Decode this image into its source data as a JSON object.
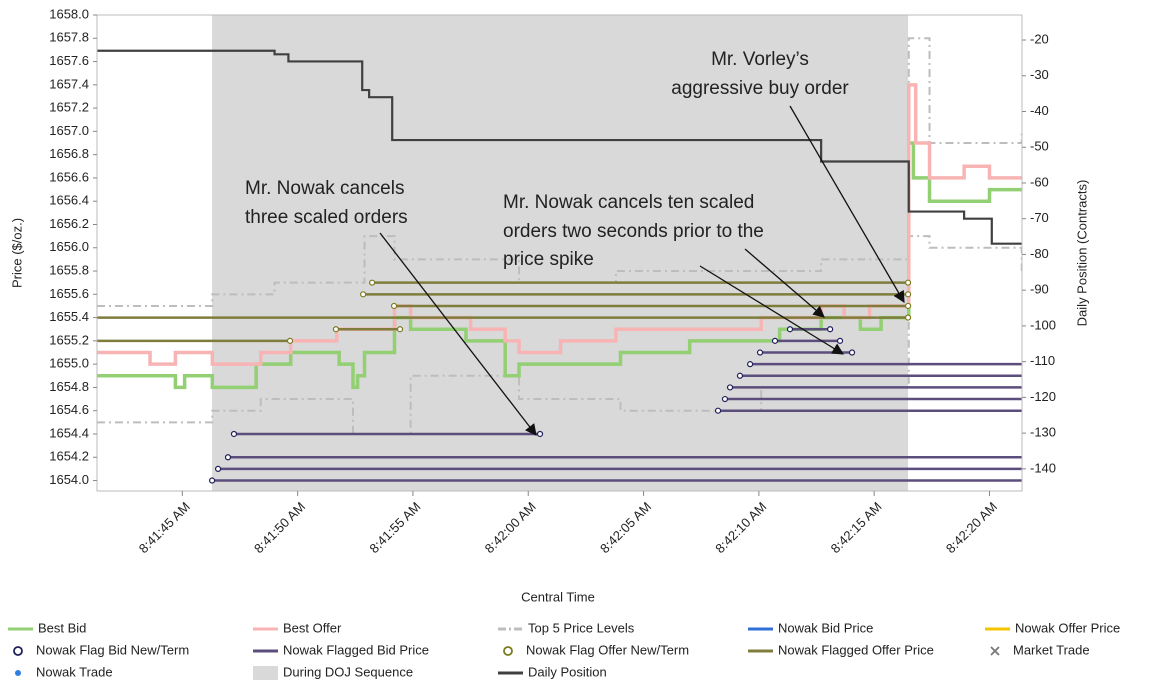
{
  "chart_data": {
    "type": "line",
    "xlabel": "Central Time",
    "ylabel": "Price ($/oz.)",
    "y2label": "Daily Position (Contracts)",
    "xlim": [
      41.3,
      81.41
    ],
    "xticks": [
      {
        "value": 45,
        "label": "8:41:45 AM"
      },
      {
        "value": 50,
        "label": "8:41:50 AM"
      },
      {
        "value": 55,
        "label": "8:41:55 AM"
      },
      {
        "value": 60,
        "label": "8:42:00 AM"
      },
      {
        "value": 65,
        "label": "8:42:05 AM"
      },
      {
        "value": 70,
        "label": "8:42:10 AM"
      },
      {
        "value": 75,
        "label": "8:42:15 AM"
      },
      {
        "value": 80,
        "label": "8:42:20 AM"
      }
    ],
    "ylim": [
      1653.91,
      1658.0
    ],
    "yticks": [
      {
        "value": 1654.0,
        "label": "1654.0"
      },
      {
        "value": 1654.2,
        "label": "1654.2"
      },
      {
        "value": 1654.4,
        "label": "1654.4"
      },
      {
        "value": 1654.6,
        "label": "1654.6"
      },
      {
        "value": 1654.8,
        "label": "1654.8"
      },
      {
        "value": 1655.0,
        "label": "1655.0"
      },
      {
        "value": 1655.2,
        "label": "1655.2"
      },
      {
        "value": 1655.4,
        "label": "1655.4"
      },
      {
        "value": 1655.6,
        "label": "1655.6"
      },
      {
        "value": 1655.8,
        "label": "1655.8"
      },
      {
        "value": 1656.0,
        "label": "1656.0"
      },
      {
        "value": 1656.2,
        "label": "1656.2"
      },
      {
        "value": 1656.4,
        "label": "1656.4"
      },
      {
        "value": 1656.6,
        "label": "1656.6"
      },
      {
        "value": 1656.8,
        "label": "1656.8"
      },
      {
        "value": 1657.0,
        "label": "1657.0"
      },
      {
        "value": 1657.2,
        "label": "1657.2"
      },
      {
        "value": 1657.4,
        "label": "1657.4"
      },
      {
        "value": 1657.6,
        "label": "1657.6"
      },
      {
        "value": 1657.8,
        "label": "1657.8"
      },
      {
        "value": 1658.0,
        "label": "1658.0"
      }
    ],
    "y2lim": [
      -146.2,
      -13.0
    ],
    "y2ticks": [
      -20,
      -30,
      -40,
      -50,
      -60,
      -70,
      -80,
      -90,
      -100,
      -110,
      -120,
      -130,
      -140
    ],
    "series": [
      {
        "name": "Best Bid",
        "color": "#93cf73",
        "style": "step",
        "x": [
          41.3,
          44.7,
          45.1,
          46.3,
          48.2,
          49.7,
          51.8,
          52.4,
          52.6,
          52.9,
          54.2,
          54.9,
          57.3,
          59.0,
          59.6,
          61.4,
          64.0,
          67.0,
          70.1,
          70.9,
          72.7,
          74.4,
          75.3,
          76.5,
          76.7,
          77.4,
          78.9,
          80.0,
          81.4
        ],
        "values": [
          1654.9,
          1654.8,
          1654.9,
          1654.8,
          1655.0,
          1655.1,
          1655.0,
          1654.8,
          1654.9,
          1655.1,
          1655.4,
          1655.3,
          1655.2,
          1654.9,
          1655.0,
          1655.0,
          1655.1,
          1655.2,
          1655.2,
          1655.3,
          1655.4,
          1655.3,
          1655.4,
          1656.9,
          1656.6,
          1656.4,
          1656.4,
          1656.5,
          1656.5
        ]
      },
      {
        "name": "Best Offer",
        "color": "#f8b4b4",
        "style": "step",
        "x": [
          41.3,
          43.6,
          44.7,
          46.3,
          48.4,
          49.7,
          51.7,
          54.2,
          54.9,
          57.5,
          59.0,
          59.6,
          61.4,
          63.8,
          67.0,
          70.1,
          72.7,
          73.7,
          74.8,
          76.5,
          76.8,
          77.4,
          78.9,
          80.0,
          81.4
        ],
        "values": [
          1655.1,
          1655.0,
          1655.1,
          1655.0,
          1655.1,
          1655.2,
          1655.3,
          1655.5,
          1655.4,
          1655.3,
          1655.2,
          1655.1,
          1655.2,
          1655.3,
          1655.3,
          1655.4,
          1655.5,
          1655.4,
          1655.5,
          1657.4,
          1656.9,
          1656.6,
          1656.7,
          1656.6,
          1656.6
        ]
      },
      {
        "name": "Top 5 Price Levels",
        "color": "#bdbdbd",
        "style": "dashed",
        "lines": [
          {
            "x": [
              41.3,
              46.3,
              49.0,
              52.9,
              54.2,
              59.6,
              63.8,
              67.0,
              72.7,
              76.5,
              77.4,
              81.4
            ],
            "values": [
              1655.5,
              1655.6,
              1655.7,
              1656.1,
              1655.9,
              1655.7,
              1655.8,
              1655.8,
              1655.9,
              1657.8,
              1656.9,
              1657.0
            ]
          },
          {
            "x": [
              41.3,
              46.3,
              48.4,
              52.4,
              54.9,
              59.6,
              64.0,
              70.1,
              76.5,
              77.4,
              81.4
            ],
            "values": [
              1654.5,
              1654.6,
              1654.7,
              1654.4,
              1654.9,
              1654.7,
              1654.6,
              1654.8,
              1656.1,
              1656.0,
              1655.8
            ]
          }
        ]
      },
      {
        "name": "Nowak Bid Price",
        "color": "#2f6fd6",
        "style": "line"
      },
      {
        "name": "Nowak Offer Price",
        "color": "#f5c400",
        "style": "line"
      },
      {
        "name": "Nowak Flag Bid New/Term",
        "color": "#1e1e5a",
        "style": "circle"
      },
      {
        "name": "Nowak Flagged Bid Price",
        "color": "#5b4e7d",
        "style": "segments",
        "marker": "#1e1e5a",
        "segments": [
          {
            "x": [
              47.24,
              60.51
            ],
            "value": 1654.4
          },
          {
            "x": [
              46.98,
              81.41
            ],
            "value": 1654.2
          },
          {
            "x": [
              46.55,
              81.41
            ],
            "value": 1654.1
          },
          {
            "x": [
              46.29,
              81.41
            ],
            "value": 1654.0
          },
          {
            "x": [
              69.62,
              81.41
            ],
            "value": 1655.0
          },
          {
            "x": [
              69.18,
              81.41
            ],
            "value": 1654.9
          },
          {
            "x": [
              68.75,
              81.41
            ],
            "value": 1654.8
          },
          {
            "x": [
              68.53,
              81.41
            ],
            "value": 1654.7
          },
          {
            "x": [
              68.23,
              81.41
            ],
            "value": 1654.6
          },
          {
            "x": [
              71.35,
              73.09
            ],
            "value": 1655.3
          },
          {
            "x": [
              70.7,
              73.52
            ],
            "value": 1655.2
          },
          {
            "x": [
              70.05,
              74.04
            ],
            "value": 1655.1
          }
        ]
      },
      {
        "name": "Nowak Flag Offer New/Term",
        "color": "#7a7a1e",
        "style": "circle"
      },
      {
        "name": "Nowak Flagged Offer Price",
        "color": "#7f7d3c",
        "style": "segments",
        "marker": "#7a7a1e",
        "segments": [
          {
            "x": [
              53.23,
              76.47
            ],
            "value": 1655.7
          },
          {
            "x": [
              52.84,
              76.47
            ],
            "value": 1655.6
          },
          {
            "x": [
              54.18,
              76.47
            ],
            "value": 1655.5
          },
          {
            "x": [
              41.3,
              76.47
            ],
            "value": 1655.4
          },
          {
            "x": [
              51.66,
              54.44
            ],
            "value": 1655.3
          },
          {
            "x": [
              41.3,
              49.67
            ],
            "value": 1655.2
          }
        ]
      },
      {
        "name": "Market Trade",
        "color": "#777777",
        "style": "cross"
      },
      {
        "name": "Nowak Trade",
        "color": "#2f7fe2",
        "style": "dot"
      },
      {
        "name": "During DOJ Sequence",
        "color": "#d9d9d9",
        "style": "band",
        "x": [
          46.29,
          76.47
        ]
      },
      {
        "name": "Daily Position",
        "color": "#404040",
        "style": "step",
        "axis": "y2",
        "x": [
          41.3,
          49.0,
          49.6,
          52.8,
          53.1,
          54.1,
          72.7,
          76.5,
          78.9,
          80.1,
          81.4
        ],
        "values": [
          -23,
          -24,
          -26,
          -34,
          -36,
          -48,
          -54,
          -68,
          -70,
          -77,
          -77
        ]
      }
    ],
    "annotations": [
      {
        "lines": [
          "Mr. Vorley’s",
          "aggressive buy order"
        ]
      },
      {
        "lines": [
          "Mr. Nowak cancels",
          "three scaled orders"
        ]
      },
      {
        "lines": [
          "Mr. Nowak cancels ten scaled",
          "orders two seconds prior to the",
          "price spike"
        ]
      }
    ]
  }
}
